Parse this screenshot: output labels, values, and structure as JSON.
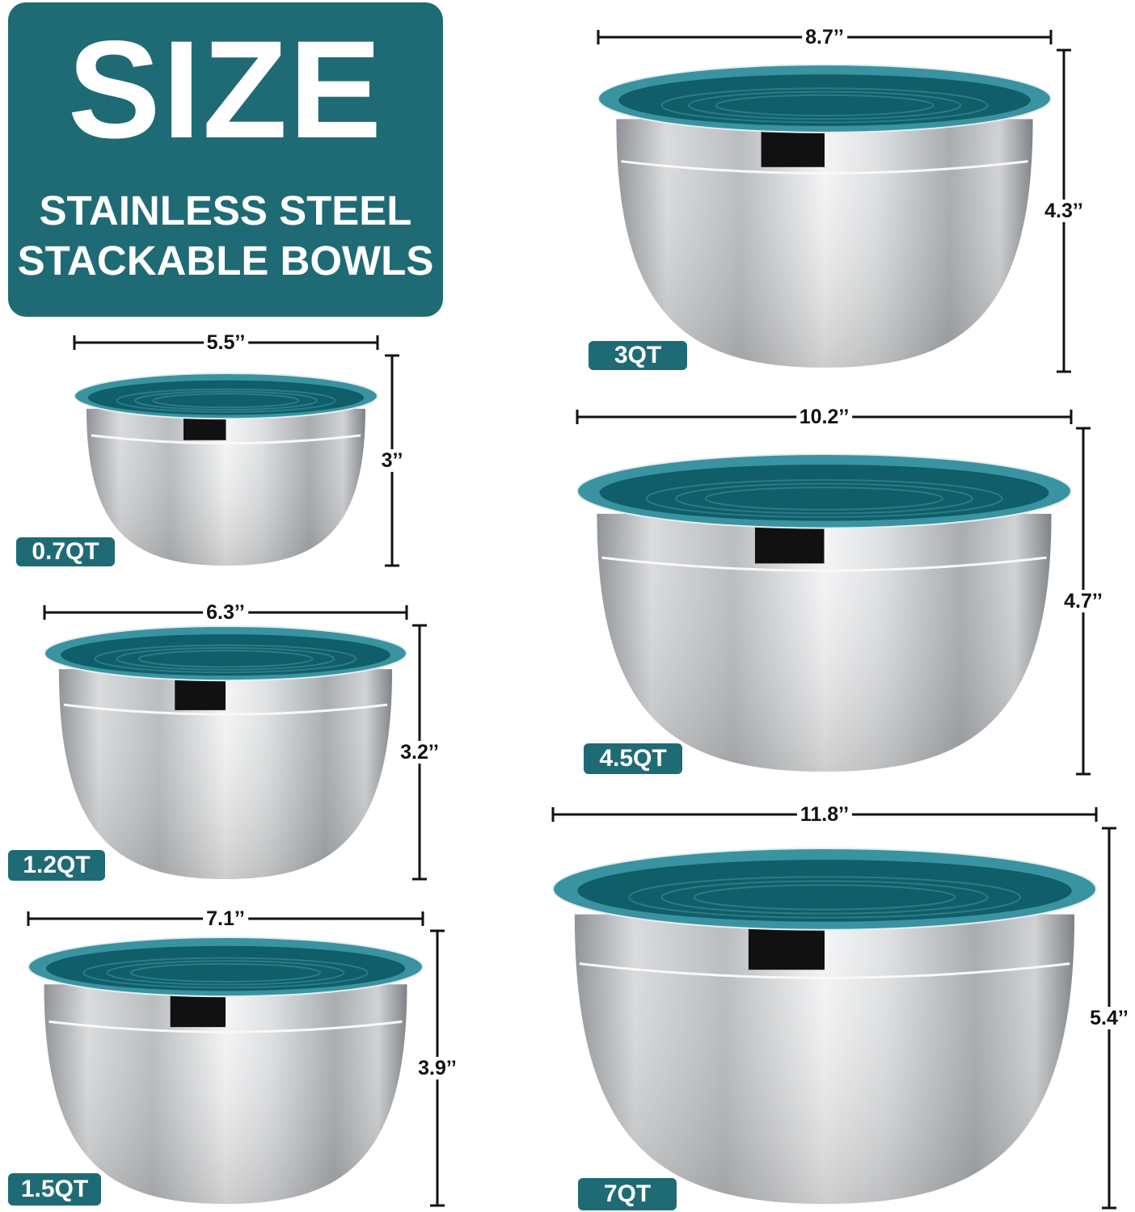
{
  "title": {
    "main": "SIZE",
    "line1": "STAINLESS STEEL",
    "line2": "STACKABLE BOWLS"
  },
  "colors": {
    "brand_teal": "#1f6b75",
    "lid_outer": "#3a93a0",
    "lid_inner": "#0f5e69",
    "dimension_lines": "#111111"
  },
  "bowls": [
    {
      "capacity": "0.7QT",
      "diameter": "5.5’’",
      "height": "3’’"
    },
    {
      "capacity": "1.2QT",
      "diameter": "6.3’’",
      "height": "3.2’’"
    },
    {
      "capacity": "1.5QT",
      "diameter": "7.1’’",
      "height": "3.9’’"
    },
    {
      "capacity": "3QT",
      "diameter": "8.7’’",
      "height": "4.3’’"
    },
    {
      "capacity": "4.5QT",
      "diameter": "10.2’’",
      "height": "4.7’’"
    },
    {
      "capacity": "7QT",
      "diameter": "11.8’’",
      "height": "5.4’’"
    }
  ]
}
